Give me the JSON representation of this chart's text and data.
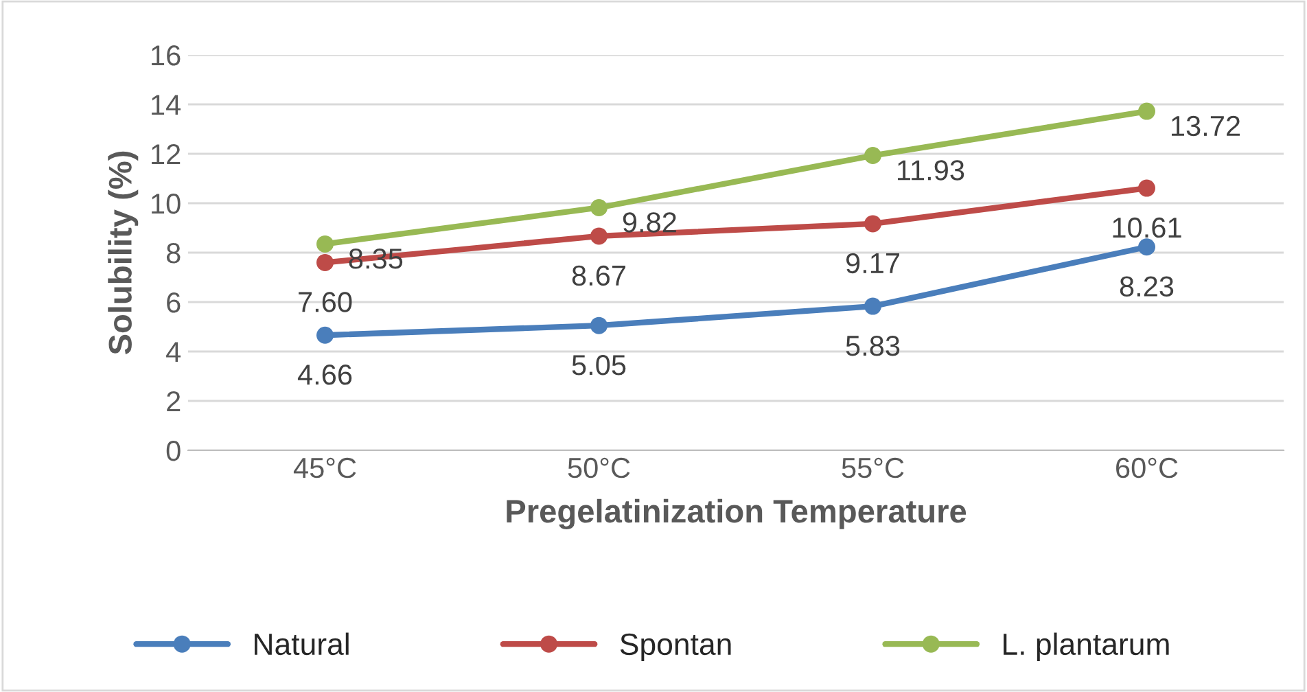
{
  "chart_data": {
    "type": "line",
    "xlabel": "Pregelatinization Temperature",
    "ylabel": "Solubility (%)",
    "categories": [
      "45°C",
      "50°C",
      "55°C",
      "60°C"
    ],
    "series": [
      {
        "name": "Natural",
        "color": "#4a7ebb",
        "values": [
          4.66,
          5.05,
          5.83,
          8.23
        ],
        "value_labels": [
          "4.66",
          "5.05",
          "5.83",
          "8.23"
        ]
      },
      {
        "name": "Spontan",
        "color": "#be4b48",
        "values": [
          7.6,
          8.67,
          9.17,
          10.61
        ],
        "value_labels": [
          "7.60",
          "8.67",
          "9.17",
          "10.61"
        ]
      },
      {
        "name": "L. plantarum",
        "color": "#98b954",
        "values": [
          8.35,
          9.82,
          11.93,
          13.72
        ],
        "value_labels": [
          "8.35",
          "9.82",
          "11.93",
          "13.72"
        ]
      }
    ],
    "ylim": [
      0,
      16
    ],
    "yticks": [
      0,
      2,
      4,
      6,
      8,
      10,
      12,
      14,
      16
    ],
    "grid": "y",
    "legend": "bottom",
    "marker": "circle",
    "line_style": "solid"
  }
}
